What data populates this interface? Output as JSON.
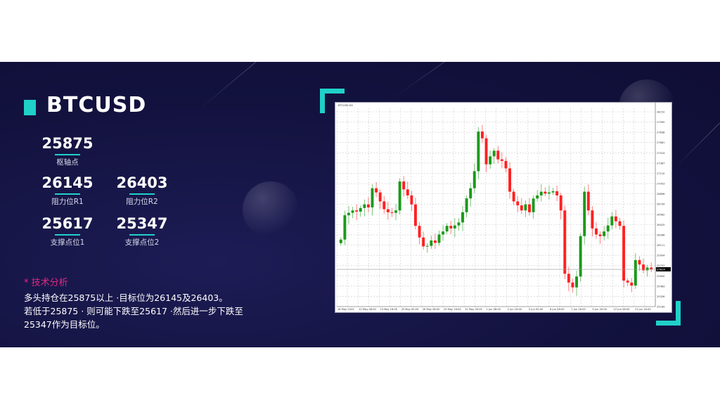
{
  "title": "BTCUSD",
  "accent_color": "#1fd1c8",
  "levels": [
    {
      "value": "25875",
      "label": "枢轴点"
    },
    {
      "value": "26145",
      "label": "阻力位R1"
    },
    {
      "value": "26403",
      "label": "阻力位R2"
    },
    {
      "value": "25617",
      "label": "支撑点位1"
    },
    {
      "value": "25347",
      "label": "支撑点位2"
    }
  ],
  "analysis": {
    "title": "* 技术分析",
    "lines": [
      "多头持仓在25875以上 ·目标位为26145及26403。",
      "若低于25875 · 则可能下跌至25617 ·然后进一步下跌至",
      "25347作为目标位。"
    ]
  },
  "chart_data": {
    "type": "candlestick",
    "header": "BTCUSD,H4",
    "up_color": "#1a9a1a",
    "down_color": "#ff2020",
    "grid": true,
    "ylim": [
      25000,
      28300
    ],
    "y_ticks": [
      "28152",
      "27995",
      "27838",
      "27681",
      "27524",
      "27367",
      "27210",
      "27053",
      "26896",
      "26739",
      "26582",
      "26425",
      "26268",
      "26111",
      "25954",
      "25797",
      "25640",
      "25483",
      "25326",
      "25169"
    ],
    "x_ticks": [
      "18 May 2023",
      "22 May 08:00",
      "23 May 16:00",
      "25 May 00:00",
      "26 May 08:00",
      "29 May 16:00",
      "31 May 00:00",
      "1 Jun 08:00",
      "2 Jun 16:00",
      "5 Jun 00:00",
      "6 Jun 08:00",
      "7 Jun 16:00",
      "9 Jun 00:00",
      "12 Jun 08:00",
      "13 Jun 16:00"
    ],
    "last_price": "25620",
    "close": [
      26115,
      26520,
      26560,
      26600,
      26580,
      26640,
      26700,
      26650,
      26969,
      26900,
      26750,
      26620,
      26570,
      26560,
      26600,
      27082,
      26950,
      26850,
      26700,
      26343,
      26150,
      26001,
      26010,
      26100,
      26060,
      26200,
      26250,
      26343,
      26300,
      26350,
      26400,
      26570,
      26800,
      26969,
      27253,
      27913,
      27800,
      27367,
      27500,
      27594,
      27450,
      27424,
      27300,
      26912,
      26750,
      26684,
      26600,
      26700,
      26570,
      26798,
      26850,
      26912,
      26880,
      26900,
      26920,
      26850,
      26600,
      25546,
      25400,
      25319,
      25500,
      26172,
      26912,
      26600,
      26300,
      26200,
      26172,
      26250,
      26350,
      26500,
      26420,
      26343,
      25432,
      25400,
      25350,
      25774,
      25700,
      25603,
      25650,
      25620
    ]
  }
}
